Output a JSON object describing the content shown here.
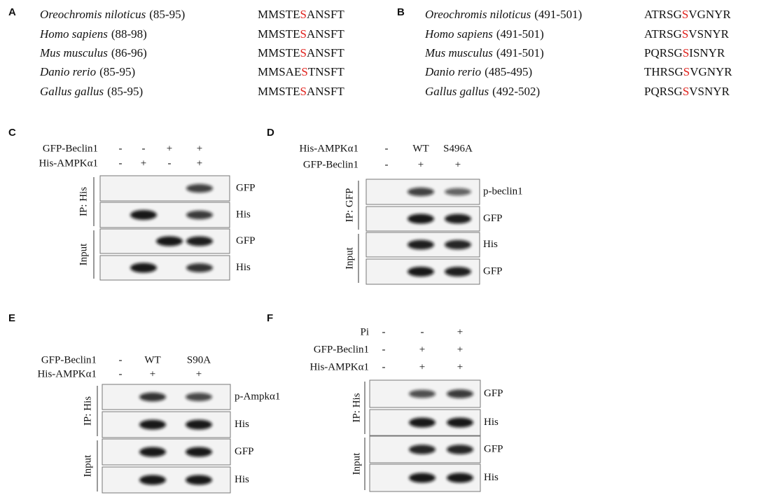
{
  "sequences": [
    {
      "label": "A",
      "rows": [
        {
          "species": "Oreochromis niloticus",
          "range": "(85-95)",
          "before": "MMSTE",
          "site": "S",
          "after": "ANSFT"
        },
        {
          "species": "Homo sapiens",
          "range": "(88-98)",
          "before": "MMSTE",
          "site": "S",
          "after": "ANSFT"
        },
        {
          "species": "Mus musculus",
          "range": "(86-96)",
          "before": "MMSTE",
          "site": "S",
          "after": "ANSFT"
        },
        {
          "species": "Danio rerio",
          "range": "(85-95)",
          "before": "MMSAE",
          "site": "S",
          "after": "TNSFT"
        },
        {
          "species": "Gallus gallus",
          "range": "(85-95)",
          "before": "MMSTE",
          "site": "S",
          "after": "ANSFT"
        }
      ]
    },
    {
      "label": "B",
      "rows": [
        {
          "species": "Oreochromis niloticus",
          "range": "(491-501)",
          "before": "ATRSG",
          "site": "S",
          "after": "VGNYR"
        },
        {
          "species": "Homo sapiens",
          "range": "(491-501)",
          "before": "ATRSG",
          "site": "S",
          "after": "VSNYR"
        },
        {
          "species": "Mus musculus",
          "range": "(491-501)",
          "before": "PQRSG",
          "site": "S",
          "after": "ISNYR"
        },
        {
          "species": "Danio rerio",
          "range": "(485-495)",
          "before": "THRSG",
          "site": "S",
          "after": "VGNYR"
        },
        {
          "species": "Gallus gallus",
          "range": "(492-502)",
          "before": "PQRSG",
          "site": "S",
          "after": "VSNYR"
        }
      ]
    }
  ],
  "blots": [
    {
      "label": "C",
      "conditions": [
        {
          "name": "GFP-Beclin1",
          "lanes": [
            "-",
            "-",
            "+",
            "+"
          ]
        },
        {
          "name": "His-AMPKα1",
          "lanes": [
            "-",
            "+",
            "-",
            "+"
          ]
        }
      ],
      "groups": [
        {
          "label": "IP: His",
          "blots": [
            "GFP",
            "His"
          ]
        },
        {
          "label": "Input",
          "blots": [
            "GFP",
            "His"
          ]
        }
      ]
    },
    {
      "label": "D",
      "conditions": [
        {
          "name": "His-AMPKα1",
          "lanes": [
            "-",
            "WT",
            "S496A"
          ]
        },
        {
          "name": "GFP-Beclin1",
          "lanes": [
            "-",
            "+",
            "+"
          ]
        }
      ],
      "groups": [
        {
          "label": "IP: GFP",
          "blots": [
            "p-beclin1",
            "GFP"
          ]
        },
        {
          "label": "Input",
          "blots": [
            "His",
            "GFP"
          ]
        }
      ]
    },
    {
      "label": "E",
      "conditions": [
        {
          "name": "GFP-Beclin1",
          "lanes": [
            "-",
            "WT",
            "S90A"
          ]
        },
        {
          "name": "His-AMPKα1",
          "lanes": [
            "-",
            "+",
            "+"
          ]
        }
      ],
      "groups": [
        {
          "label": "IP: His",
          "blots": [
            "p-Ampkα1",
            "His"
          ]
        },
        {
          "label": "Input",
          "blots": [
            "GFP",
            "His"
          ]
        }
      ]
    },
    {
      "label": "F",
      "conditions": [
        {
          "name": "Pi",
          "lanes": [
            "-",
            "-",
            "+"
          ]
        },
        {
          "name": "GFP-Beclin1",
          "lanes": [
            "-",
            "+",
            "+"
          ]
        },
        {
          "name": "His-AMPKα1",
          "lanes": [
            "-",
            "+",
            "+"
          ]
        }
      ],
      "groups": [
        {
          "label": "IP: His",
          "blots": [
            "GFP",
            "His"
          ]
        },
        {
          "label": "Input",
          "blots": [
            "GFP",
            "His"
          ]
        }
      ]
    }
  ]
}
